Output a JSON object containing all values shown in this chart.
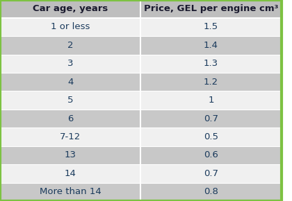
{
  "headers": [
    "Car age, years",
    "Price, GEL per engine cm³"
  ],
  "rows": [
    [
      "1 or less",
      "1.5"
    ],
    [
      "2",
      "1.4"
    ],
    [
      "3",
      "1.3"
    ],
    [
      "4",
      "1.2"
    ],
    [
      "5",
      "1"
    ],
    [
      "6",
      "0.7"
    ],
    [
      "7-12",
      "0.5"
    ],
    [
      "13",
      "0.6"
    ],
    [
      "14",
      "0.7"
    ],
    [
      "More than 14",
      "0.8"
    ]
  ],
  "header_bg": "#bebebe",
  "row_bg_odd": "#f0f0f0",
  "row_bg_even": "#c8c8c8",
  "header_text_color": "#1a1a2e",
  "row_text_color": "#1a3a5c",
  "border_color": "#7dc242",
  "col_split": 0.5,
  "figwidth": 4.2,
  "figheight": 2.9,
  "dpi": 100,
  "header_fontsize": 9.5,
  "row_fontsize": 9.5,
  "border_width": 3
}
